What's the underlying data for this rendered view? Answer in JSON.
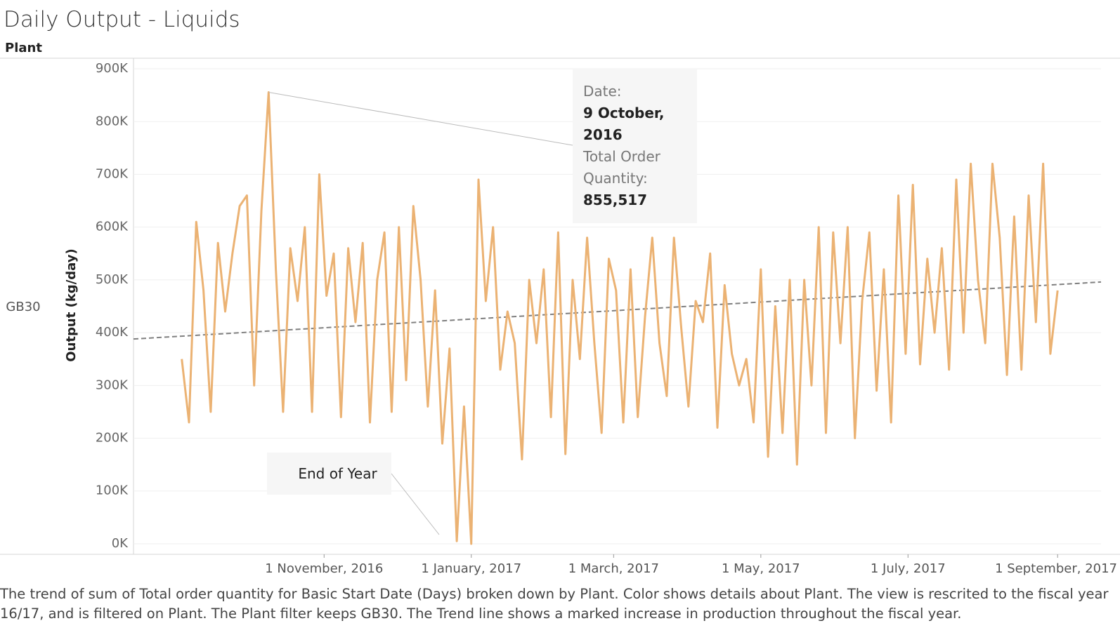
{
  "title": "Daily Output - Liquids",
  "column_header": "Plant",
  "caption": "The trend of sum of Total order quantity for Basic Start Date (Days) broken down by Plant.  Color shows details about Plant. The view is rescrited to the fiscal year 16/17, and is filtered on Plant. The Plant filter keeps GB30. The Trend line shows a marked increase in production throughout the fiscal year.",
  "annotations": [
    {
      "lines": [
        "Date:",
        "9 October, 2016",
        "Total Order Quantity:",
        "855,517"
      ]
    },
    {
      "lines": [
        "End of Year"
      ]
    }
  ],
  "chart_data": {
    "type": "line",
    "y_label": "Output (kg/day)",
    "x": [
      "2016-09-03",
      "2016-09-06",
      "2016-09-09",
      "2016-09-12",
      "2016-09-15",
      "2016-09-18",
      "2016-09-21",
      "2016-09-24",
      "2016-09-27",
      "2016-09-30",
      "2016-10-03",
      "2016-10-06",
      "2016-10-09",
      "2016-10-12",
      "2016-10-15",
      "2016-10-18",
      "2016-10-21",
      "2016-10-24",
      "2016-10-27",
      "2016-10-30",
      "2016-11-02",
      "2016-11-05",
      "2016-11-08",
      "2016-11-11",
      "2016-11-14",
      "2016-11-17",
      "2016-11-20",
      "2016-11-23",
      "2016-11-26",
      "2016-11-29",
      "2016-12-02",
      "2016-12-05",
      "2016-12-08",
      "2016-12-11",
      "2016-12-14",
      "2016-12-17",
      "2016-12-20",
      "2016-12-23",
      "2016-12-26",
      "2016-12-29",
      "2017-01-01",
      "2017-01-04",
      "2017-01-07",
      "2017-01-10",
      "2017-01-13",
      "2017-01-16",
      "2017-01-19",
      "2017-01-22",
      "2017-01-25",
      "2017-01-28",
      "2017-01-31",
      "2017-02-03",
      "2017-02-06",
      "2017-02-09",
      "2017-02-12",
      "2017-02-15",
      "2017-02-18",
      "2017-02-21",
      "2017-02-24",
      "2017-02-27",
      "2017-03-02",
      "2017-03-05",
      "2017-03-08",
      "2017-03-11",
      "2017-03-14",
      "2017-03-17",
      "2017-03-20",
      "2017-03-23",
      "2017-03-26",
      "2017-03-29",
      "2017-04-01",
      "2017-04-04",
      "2017-04-07",
      "2017-04-10",
      "2017-04-13",
      "2017-04-16",
      "2017-04-19",
      "2017-04-22",
      "2017-04-25",
      "2017-04-28",
      "2017-05-01",
      "2017-05-04",
      "2017-05-07",
      "2017-05-10",
      "2017-05-13",
      "2017-05-16",
      "2017-05-19",
      "2017-05-22",
      "2017-05-25",
      "2017-05-28",
      "2017-05-31",
      "2017-06-03",
      "2017-06-06",
      "2017-06-09",
      "2017-06-12",
      "2017-06-15",
      "2017-06-18",
      "2017-06-21",
      "2017-06-24",
      "2017-06-27",
      "2017-06-30",
      "2017-07-03",
      "2017-07-06",
      "2017-07-09",
      "2017-07-12",
      "2017-07-15",
      "2017-07-18",
      "2017-07-21",
      "2017-07-24",
      "2017-07-27",
      "2017-07-30",
      "2017-08-02",
      "2017-08-05",
      "2017-08-08",
      "2017-08-11",
      "2017-08-14",
      "2017-08-17",
      "2017-08-20",
      "2017-08-23",
      "2017-08-26",
      "2017-08-29",
      "2017-09-01"
    ],
    "series": [
      {
        "name": "GB30",
        "color": "#ebb273",
        "values": [
          350000,
          230000,
          610000,
          480000,
          250000,
          570000,
          440000,
          550000,
          640000,
          660000,
          300000,
          630000,
          855517,
          520000,
          250000,
          560000,
          460000,
          600000,
          250000,
          700000,
          470000,
          550000,
          240000,
          560000,
          420000,
          570000,
          230000,
          500000,
          590000,
          250000,
          600000,
          310000,
          640000,
          500000,
          260000,
          480000,
          190000,
          370000,
          5000,
          260000,
          0,
          690000,
          460000,
          600000,
          330000,
          440000,
          380000,
          160000,
          500000,
          380000,
          520000,
          240000,
          590000,
          170000,
          500000,
          350000,
          580000,
          380000,
          210000,
          540000,
          480000,
          230000,
          520000,
          240000,
          430000,
          580000,
          380000,
          280000,
          580000,
          410000,
          260000,
          460000,
          420000,
          550000,
          220000,
          490000,
          360000,
          300000,
          350000,
          230000,
          520000,
          165000,
          450000,
          210000,
          500000,
          150000,
          500000,
          300000,
          600000,
          210000,
          590000,
          380000,
          600000,
          200000,
          460000,
          590000,
          290000,
          520000,
          230000,
          660000,
          360000,
          680000,
          340000,
          540000,
          400000,
          560000,
          330000,
          690000,
          400000,
          720000,
          500000,
          380000,
          720000,
          580000,
          320000,
          620000,
          330000,
          660000,
          420000,
          720000,
          360000,
          480000
        ]
      }
    ],
    "trend_line": {
      "x": [
        "2016-08-14",
        "2017-09-19"
      ],
      "values": [
        388000,
        496000
      ],
      "color": "#7f7f7f"
    },
    "xlim": [
      "2016-08-14",
      "2017-09-19"
    ],
    "xticks": [
      {
        "value": "2016-11-01",
        "label": "1 November, 2016"
      },
      {
        "value": "2017-01-01",
        "label": "1 January, 2017"
      },
      {
        "value": "2017-03-01",
        "label": "1 March, 2017"
      },
      {
        "value": "2017-05-01",
        "label": "1 May, 2017"
      },
      {
        "value": "2017-07-01",
        "label": "1 July, 2017"
      },
      {
        "value": "2017-09-01",
        "label": "1 September, 2017"
      }
    ],
    "ylim": [
      -20000,
      920000
    ],
    "yticks": [
      {
        "value": 0,
        "label": "0K"
      },
      {
        "value": 100000,
        "label": "100K"
      },
      {
        "value": 200000,
        "label": "200K"
      },
      {
        "value": 300000,
        "label": "300K"
      },
      {
        "value": 400000,
        "label": "400K"
      },
      {
        "value": 500000,
        "label": "500K"
      },
      {
        "value": 600000,
        "label": "600K"
      },
      {
        "value": 700000,
        "label": "700K"
      },
      {
        "value": 800000,
        "label": "800K"
      },
      {
        "value": 900000,
        "label": "900K"
      }
    ],
    "grid": true
  }
}
